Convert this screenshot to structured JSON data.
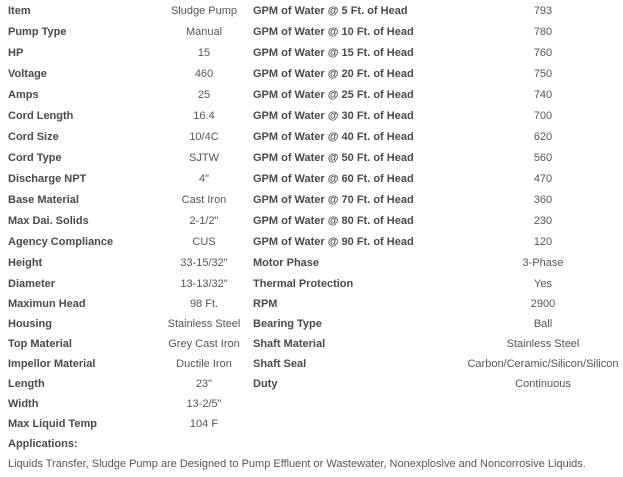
{
  "left_specs": [
    {
      "label": "Item",
      "value": "Sludge Pump"
    },
    {
      "label": "Pump Type",
      "value": "Manual"
    },
    {
      "label": "HP",
      "value": "15"
    },
    {
      "label": "Voltage",
      "value": "460"
    },
    {
      "label": "Amps",
      "value": "25"
    },
    {
      "label": "Cord Length",
      "value": "16.4"
    },
    {
      "label": "Cord Size",
      "value": "10/4C"
    },
    {
      "label": "Cord Type",
      "value": "SJTW"
    },
    {
      "label": "Discharge NPT",
      "value": "4\""
    },
    {
      "label": "Base Material",
      "value": "Cast Iron"
    },
    {
      "label": "Max Dai. Solids",
      "value": "2-1/2\""
    },
    {
      "label": "Agency Compliance",
      "value": "CUS"
    },
    {
      "label": "Height",
      "value": "33-15/32\""
    },
    {
      "label": "Diameter",
      "value": "13-13/32\""
    },
    {
      "label": "Maximun Head",
      "value": "98 Ft."
    },
    {
      "label": "Housing",
      "value": "Stainless Steel"
    },
    {
      "label": "Top Material",
      "value": "Grey Cast Iron"
    },
    {
      "label": "Impellor Material",
      "value": "Ductile Iron"
    },
    {
      "label": "Length",
      "value": "23\""
    },
    {
      "label": "Width",
      "value": "13-2/5\""
    },
    {
      "label": "Max Liquid Temp",
      "value": "104 F"
    }
  ],
  "right_specs": [
    {
      "label": "GPM of Water @ 5 Ft. of Head",
      "value": "793"
    },
    {
      "label": "GPM of Water @ 10 Ft. of Head",
      "value": "780"
    },
    {
      "label": "GPM of Water @ 15 Ft. of Head",
      "value": "760"
    },
    {
      "label": "GPM of Water @ 20 Ft. of Head",
      "value": "750"
    },
    {
      "label": "GPM of Water @ 25 Ft. of Head",
      "value": "740"
    },
    {
      "label": "GPM of Water @ 30 Ft. of Head",
      "value": "700"
    },
    {
      "label": "GPM of Water @ 40 Ft. of Head",
      "value": "620"
    },
    {
      "label": "GPM of Water @ 50 Ft. of Head",
      "value": "560"
    },
    {
      "label": "GPM of Water @ 60 Ft. of Head",
      "value": "470"
    },
    {
      "label": "GPM of Water @ 70 Ft. of Head",
      "value": "360"
    },
    {
      "label": "GPM of Water @ 80 Ft. of Head",
      "value": "230"
    },
    {
      "label": "GPM of Water @ 90 Ft. of Head",
      "value": "120"
    },
    {
      "label": "Motor Phase",
      "value": "3-Phase"
    },
    {
      "label": "Thermal Protection",
      "value": "Yes"
    },
    {
      "label": "RPM",
      "value": "2900"
    },
    {
      "label": "Bearing Type",
      "value": "Ball"
    },
    {
      "label": "Shaft Material",
      "value": "Stainless Steel"
    },
    {
      "label": "Shaft Seal",
      "value": "Carbon/Ceramic/Silicon/Silicon"
    },
    {
      "label": "Duty",
      "value": "Continuous"
    }
  ],
  "applications": {
    "title": "Applications:",
    "text": "Liquids Transfer, Sludge Pump are Designed to Pump Effluent or Wastewater, Nonexplosive and Noncorrosive Liquids."
  }
}
